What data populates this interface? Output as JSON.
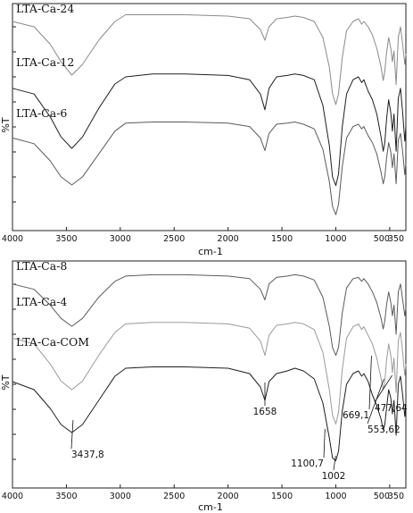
{
  "chart_data": [
    {
      "type": "line",
      "xlabel": "cm-1",
      "ylabel": "%T",
      "xlim": [
        4000,
        350
      ],
      "x_reversed": true,
      "x_ticks": [
        4000,
        3500,
        3000,
        2500,
        2000,
        1500,
        1000,
        500,
        350
      ],
      "grid": false,
      "series": [
        {
          "name": "LTA-Ca-24",
          "color": "#8a8a8a",
          "x": [
            4000,
            3800,
            3650,
            3550,
            3450,
            3350,
            3200,
            3050,
            2950,
            2700,
            2400,
            2000,
            1800,
            1700,
            1658,
            1620,
            1550,
            1450,
            1380,
            1300,
            1200,
            1120,
            1060,
            1030,
            1000,
            975,
            940,
            900,
            840,
            790,
            760,
            740,
            700,
            660,
            620,
            580,
            560,
            545,
            530,
            510,
            490,
            475,
            460,
            440,
            420,
            400,
            380,
            360,
            350
          ],
          "y": [
            0.08,
            0.12,
            0.25,
            0.38,
            0.48,
            0.4,
            0.22,
            0.08,
            0.03,
            0.03,
            0.03,
            0.04,
            0.06,
            0.14,
            0.22,
            0.12,
            0.06,
            0.05,
            0.04,
            0.05,
            0.08,
            0.2,
            0.42,
            0.62,
            0.7,
            0.62,
            0.35,
            0.15,
            0.08,
            0.06,
            0.1,
            0.08,
            0.12,
            0.18,
            0.28,
            0.42,
            0.52,
            0.45,
            0.32,
            0.2,
            0.28,
            0.38,
            0.3,
            0.55,
            0.2,
            0.12,
            0.25,
            0.4,
            0.32
          ]
        },
        {
          "name": "LTA-Ca-12",
          "color": "#1e1e1e",
          "x": [
            4000,
            3800,
            3650,
            3550,
            3450,
            3350,
            3200,
            3050,
            2950,
            2700,
            2400,
            2000,
            1800,
            1700,
            1658,
            1620,
            1550,
            1450,
            1380,
            1300,
            1200,
            1120,
            1060,
            1030,
            1000,
            975,
            940,
            900,
            840,
            790,
            760,
            740,
            700,
            660,
            620,
            580,
            560,
            545,
            530,
            510,
            490,
            475,
            460,
            440,
            420,
            400,
            380,
            360,
            350
          ],
          "y": [
            0.18,
            0.22,
            0.38,
            0.52,
            0.6,
            0.52,
            0.32,
            0.15,
            0.1,
            0.08,
            0.08,
            0.09,
            0.12,
            0.22,
            0.33,
            0.18,
            0.1,
            0.09,
            0.08,
            0.09,
            0.12,
            0.3,
            0.58,
            0.8,
            0.86,
            0.78,
            0.45,
            0.22,
            0.12,
            0.1,
            0.14,
            0.12,
            0.2,
            0.26,
            0.36,
            0.52,
            0.62,
            0.56,
            0.4,
            0.26,
            0.35,
            0.48,
            0.36,
            0.62,
            0.25,
            0.18,
            0.35,
            0.55,
            0.45
          ]
        },
        {
          "name": "LTA-Ca-6",
          "color": "#5a5a5a",
          "x": [
            4000,
            3800,
            3650,
            3550,
            3450,
            3350,
            3200,
            3050,
            2950,
            2700,
            2400,
            2000,
            1800,
            1700,
            1658,
            1620,
            1550,
            1450,
            1380,
            1300,
            1200,
            1120,
            1060,
            1030,
            1000,
            975,
            940,
            900,
            840,
            790,
            760,
            740,
            700,
            660,
            620,
            580,
            560,
            545,
            530,
            510,
            490,
            475,
            460,
            440,
            420,
            400,
            380,
            360,
            350
          ],
          "y": [
            0.3,
            0.35,
            0.5,
            0.64,
            0.71,
            0.64,
            0.44,
            0.24,
            0.17,
            0.16,
            0.16,
            0.17,
            0.2,
            0.3,
            0.41,
            0.26,
            0.18,
            0.17,
            0.16,
            0.18,
            0.22,
            0.4,
            0.68,
            0.9,
            0.97,
            0.88,
            0.55,
            0.3,
            0.2,
            0.18,
            0.22,
            0.2,
            0.28,
            0.34,
            0.44,
            0.6,
            0.7,
            0.64,
            0.48,
            0.34,
            0.42,
            0.56,
            0.44,
            0.7,
            0.32,
            0.26,
            0.42,
            0.62,
            0.52
          ]
        }
      ]
    },
    {
      "type": "line",
      "xlabel": "cm-1",
      "ylabel": "%T",
      "xlim": [
        4000,
        350
      ],
      "x_reversed": true,
      "x_ticks": [
        4000,
        3500,
        3000,
        2500,
        2000,
        1500,
        1000,
        500,
        350
      ],
      "grid": false,
      "series": [
        {
          "name": "LTA-Ca-8",
          "color": "#5a5a5a",
          "x": [
            4000,
            3800,
            3650,
            3550,
            3450,
            3350,
            3200,
            3050,
            2950,
            2700,
            2400,
            2000,
            1800,
            1700,
            1658,
            1620,
            1550,
            1450,
            1380,
            1300,
            1200,
            1120,
            1060,
            1030,
            1000,
            975,
            940,
            900,
            840,
            790,
            760,
            740,
            700,
            660,
            620,
            580,
            560,
            545,
            530,
            510,
            490,
            475,
            460,
            440,
            420,
            400,
            380,
            360,
            350
          ],
          "y": [
            0.12,
            0.16,
            0.28,
            0.38,
            0.44,
            0.38,
            0.22,
            0.1,
            0.06,
            0.05,
            0.05,
            0.06,
            0.08,
            0.16,
            0.24,
            0.12,
            0.07,
            0.06,
            0.05,
            0.06,
            0.09,
            0.22,
            0.44,
            0.6,
            0.66,
            0.6,
            0.34,
            0.15,
            0.08,
            0.07,
            0.1,
            0.08,
            0.12,
            0.18,
            0.26,
            0.38,
            0.46,
            0.4,
            0.28,
            0.18,
            0.26,
            0.36,
            0.28,
            0.5,
            0.18,
            0.12,
            0.24,
            0.36,
            0.3
          ]
        },
        {
          "name": "LTA-Ca-4",
          "color": "#9a9a9a",
          "x": [
            4000,
            3800,
            3650,
            3550,
            3450,
            3350,
            3200,
            3050,
            2950,
            2700,
            2400,
            2000,
            1800,
            1700,
            1658,
            1620,
            1550,
            1450,
            1380,
            1300,
            1200,
            1120,
            1060,
            1030,
            1000,
            975,
            940,
            900,
            840,
            790,
            760,
            740,
            700,
            660,
            620,
            580,
            560,
            545,
            530,
            510,
            490,
            475,
            460,
            440,
            420,
            400,
            380,
            360,
            350
          ],
          "y": [
            0.24,
            0.28,
            0.42,
            0.54,
            0.6,
            0.54,
            0.36,
            0.2,
            0.14,
            0.13,
            0.13,
            0.14,
            0.17,
            0.26,
            0.36,
            0.22,
            0.15,
            0.14,
            0.13,
            0.14,
            0.18,
            0.34,
            0.6,
            0.78,
            0.84,
            0.76,
            0.46,
            0.24,
            0.16,
            0.14,
            0.18,
            0.16,
            0.22,
            0.28,
            0.38,
            0.52,
            0.6,
            0.54,
            0.4,
            0.28,
            0.36,
            0.48,
            0.38,
            0.62,
            0.26,
            0.2,
            0.34,
            0.5,
            0.42
          ]
        },
        {
          "name": "LTA-Ca-COM",
          "color": "#1e1e1e",
          "x": [
            4000,
            3800,
            3650,
            3550,
            3450,
            3350,
            3200,
            3050,
            2950,
            2700,
            2400,
            2000,
            1800,
            1700,
            1658,
            1620,
            1550,
            1450,
            1380,
            1300,
            1200,
            1120,
            1060,
            1030,
            1000,
            975,
            940,
            900,
            840,
            790,
            760,
            740,
            700,
            660,
            620,
            580,
            560,
            545,
            530,
            510,
            490,
            475,
            460,
            440,
            420,
            400,
            380,
            360,
            350
          ],
          "y": [
            0.38,
            0.44,
            0.58,
            0.7,
            0.76,
            0.7,
            0.52,
            0.34,
            0.28,
            0.27,
            0.27,
            0.28,
            0.32,
            0.42,
            0.52,
            0.38,
            0.32,
            0.3,
            0.28,
            0.3,
            0.36,
            0.54,
            0.8,
            0.95,
            0.97,
            0.9,
            0.6,
            0.4,
            0.32,
            0.3,
            0.34,
            0.32,
            0.38,
            0.48,
            0.56,
            0.66,
            0.74,
            0.7,
            0.58,
            0.44,
            0.5,
            0.62,
            0.52,
            0.78,
            0.4,
            0.34,
            0.48,
            0.64,
            0.56
          ]
        }
      ],
      "annotations": [
        {
          "text": "3437,8",
          "x": 3437.8
        },
        {
          "text": "1658",
          "x": 1658
        },
        {
          "text": "1100,7",
          "x": 1100.7
        },
        {
          "text": "1002",
          "x": 1002
        },
        {
          "text": "669,1",
          "x": 669.1
        },
        {
          "text": "553,62",
          "x": 553.62
        },
        {
          "text": "477,64",
          "x": 477.64
        }
      ]
    }
  ]
}
